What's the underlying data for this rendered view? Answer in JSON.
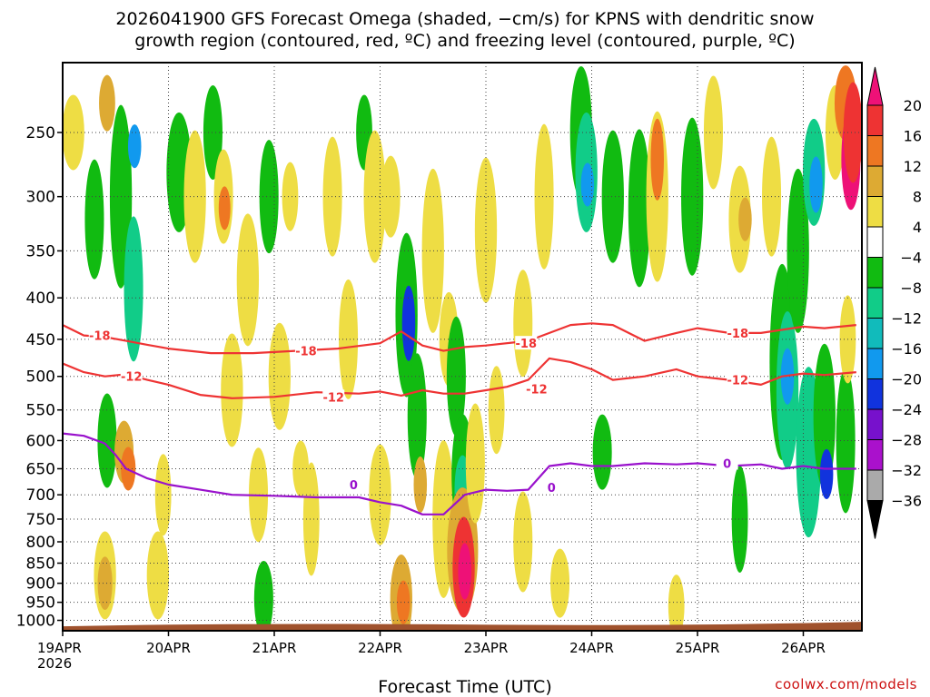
{
  "title_line1": "2026041900 GFS Forecast Omega (shaded, −cm/s) for KPNS with dendritic snow",
  "title_line2": "growth region (contoured, red, ºC) and freezing level (contoured, purple, ºC)",
  "credit": "coolwx.com/models",
  "chart_data": {
    "type": "heatmap",
    "title": "2026041900 GFS Forecast Omega (shaded, −cm/s) for KPNS with dendritic snow growth region (contoured, red, ºC) and freezing level (contoured, purple, ºC)",
    "xlabel": "Forecast Time (UTC)",
    "ylabel": "",
    "y_scale": "log-pressure, inverted",
    "ylim": [
      1030,
      205
    ],
    "xlim": [
      "2026-04-19 00Z",
      "2026-04-26 12Z"
    ],
    "x_ticks": [
      "19APR\n2026",
      "20APR",
      "21APR",
      "22APR",
      "23APR",
      "24APR",
      "25APR",
      "26APR"
    ],
    "y_ticks": [
      250,
      300,
      350,
      400,
      450,
      500,
      550,
      600,
      650,
      700,
      750,
      800,
      850,
      900,
      950,
      1000
    ],
    "grid": true,
    "colorbar": {
      "labels": [
        20,
        16,
        12,
        8,
        4,
        -4,
        -8,
        -12,
        -16,
        -20,
        -24,
        -28,
        -32,
        -36
      ],
      "colors": [
        "#ee1177",
        "#ee3333",
        "#ee7722",
        "#ddaa33",
        "#eedd44",
        "#ffffff",
        "#11bb11",
        "#11cc88",
        "#11bbbb",
        "#1199ee",
        "#1133dd",
        "#7711cc",
        "#aa11cc",
        "#aaaaaa",
        "#000000"
      ]
    },
    "contours": [
      {
        "name": "-18",
        "color": "#ee3333",
        "days": [
          0,
          0.2,
          0.4,
          0.6,
          0.8,
          1.0,
          1.4,
          1.8,
          2.2,
          2.6,
          3.0,
          3.2,
          3.4,
          3.6,
          3.8,
          4.0,
          4.4,
          4.8,
          5.0,
          5.2,
          5.5,
          5.8,
          6.0,
          6.3,
          6.6,
          6.8,
          7.0,
          7.2,
          7.5
        ],
        "p": [
          432,
          445,
          447,
          452,
          457,
          462,
          468,
          468,
          465,
          462,
          455,
          440,
          458,
          465,
          460,
          458,
          452,
          432,
          430,
          432,
          452,
          442,
          436,
          442,
          442,
          438,
          434,
          436,
          432
        ]
      },
      {
        "name": "-12",
        "color": "#ee3333",
        "days": [
          0,
          0.2,
          0.4,
          0.6,
          0.8,
          1.0,
          1.3,
          1.6,
          2.0,
          2.4,
          2.8,
          3.0,
          3.2,
          3.4,
          3.6,
          3.8,
          4.0,
          4.2,
          4.4,
          4.6,
          4.8,
          5.0,
          5.2,
          5.5,
          5.8,
          6.0,
          6.3,
          6.6,
          6.8,
          7.0,
          7.2,
          7.5
        ],
        "p": [
          482,
          494,
          500,
          497,
          505,
          512,
          527,
          532,
          530,
          523,
          525,
          522,
          528,
          520,
          525,
          525,
          520,
          515,
          505,
          475,
          480,
          490,
          505,
          500,
          490,
          500,
          505,
          512,
          500,
          496,
          498,
          494
        ]
      },
      {
        "name": "0",
        "color": "#9911cc",
        "days": [
          0,
          0.2,
          0.4,
          0.5,
          0.6,
          0.8,
          1.0,
          1.3,
          1.6,
          2.0,
          2.4,
          2.8,
          3.0,
          3.2,
          3.4,
          3.6,
          3.8,
          4.0,
          4.2,
          4.4,
          4.6,
          4.8,
          5.0,
          5.2,
          5.5,
          5.8,
          6.0,
          6.3,
          6.6,
          6.8,
          7.0,
          7.2,
          7.5
        ],
        "p": [
          588,
          592,
          605,
          625,
          650,
          668,
          680,
          690,
          700,
          702,
          705,
          705,
          715,
          722,
          740,
          740,
          700,
          690,
          692,
          690,
          645,
          640,
          645,
          645,
          640,
          642,
          640,
          645,
          642,
          650,
          645,
          650,
          650
        ]
      }
    ],
    "contour_labels": [
      {
        "text": "-18",
        "color": "#ee3333",
        "day": 0.35,
        "p": 445
      },
      {
        "text": "-18",
        "color": "#ee3333",
        "day": 2.3,
        "p": 465
      },
      {
        "text": "-18",
        "color": "#ee3333",
        "day": 4.38,
        "p": 455
      },
      {
        "text": "-18",
        "color": "#ee3333",
        "day": 6.38,
        "p": 442
      },
      {
        "text": "-12",
        "color": "#ee3333",
        "day": 0.65,
        "p": 500
      },
      {
        "text": "-12",
        "color": "#ee3333",
        "day": 2.56,
        "p": 530
      },
      {
        "text": "-12",
        "color": "#ee3333",
        "day": 4.48,
        "p": 518
      },
      {
        "text": "-12",
        "color": "#ee3333",
        "day": 6.38,
        "p": 505
      },
      {
        "text": "0",
        "color": "#9911cc",
        "day": 2.75,
        "p": 680
      },
      {
        "text": "0",
        "color": "#9911cc",
        "day": 4.62,
        "p": 685
      },
      {
        "text": "0",
        "color": "#9911cc",
        "day": 6.28,
        "p": 640
      }
    ],
    "terrain": {
      "name": "surface",
      "color": "#a0522d",
      "p_top": 1012
    }
  }
}
